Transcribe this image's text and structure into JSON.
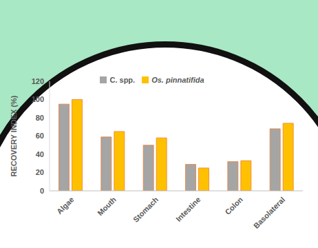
{
  "chart_data": {
    "type": "bar",
    "categories": [
      "Algae",
      "Mouth",
      "Stomach",
      "Intestine",
      "Colon",
      "Basolateral"
    ],
    "series": [
      {
        "name": "C. spp.",
        "color": "#a5a5a5",
        "values": [
          95,
          59,
          50,
          29,
          32,
          68
        ]
      },
      {
        "name": "Os. pinnatifida",
        "color": "#ffc000",
        "values": [
          100,
          65,
          58,
          25,
          33,
          74
        ]
      }
    ],
    "y_label": "RECOVERY INDEX (%)",
    "ylim": [
      0,
      120
    ],
    "yticks": [
      0,
      20,
      40,
      60,
      80,
      100,
      120
    ],
    "grid": false,
    "legend": "top"
  }
}
